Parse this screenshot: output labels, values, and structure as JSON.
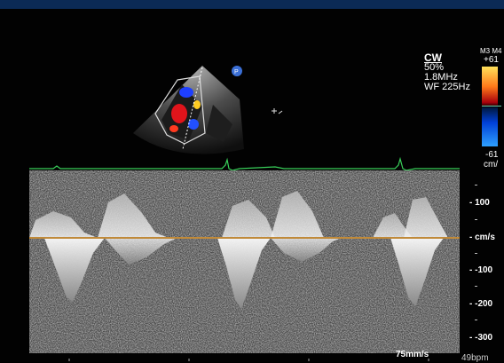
{
  "mode": {
    "name": "CW",
    "power": "50%",
    "frequency": "1.8MHz",
    "wall_filter": "WF 225Hz"
  },
  "color_scale": {
    "header": "M3 M4",
    "top_value": "+61",
    "bottom_value": "-61",
    "unit": "cm/"
  },
  "velocity_scale": {
    "labels": [
      "- 100",
      "- cm/s",
      "- -100",
      "- -200",
      "- -300"
    ]
  },
  "sweep_speed": "75mm/s",
  "heart_rate": "49bpm",
  "colors": {
    "ecg_trace": "#39d05a",
    "baseline": "#c08a3a",
    "accent_bar": "#0b2a55"
  }
}
